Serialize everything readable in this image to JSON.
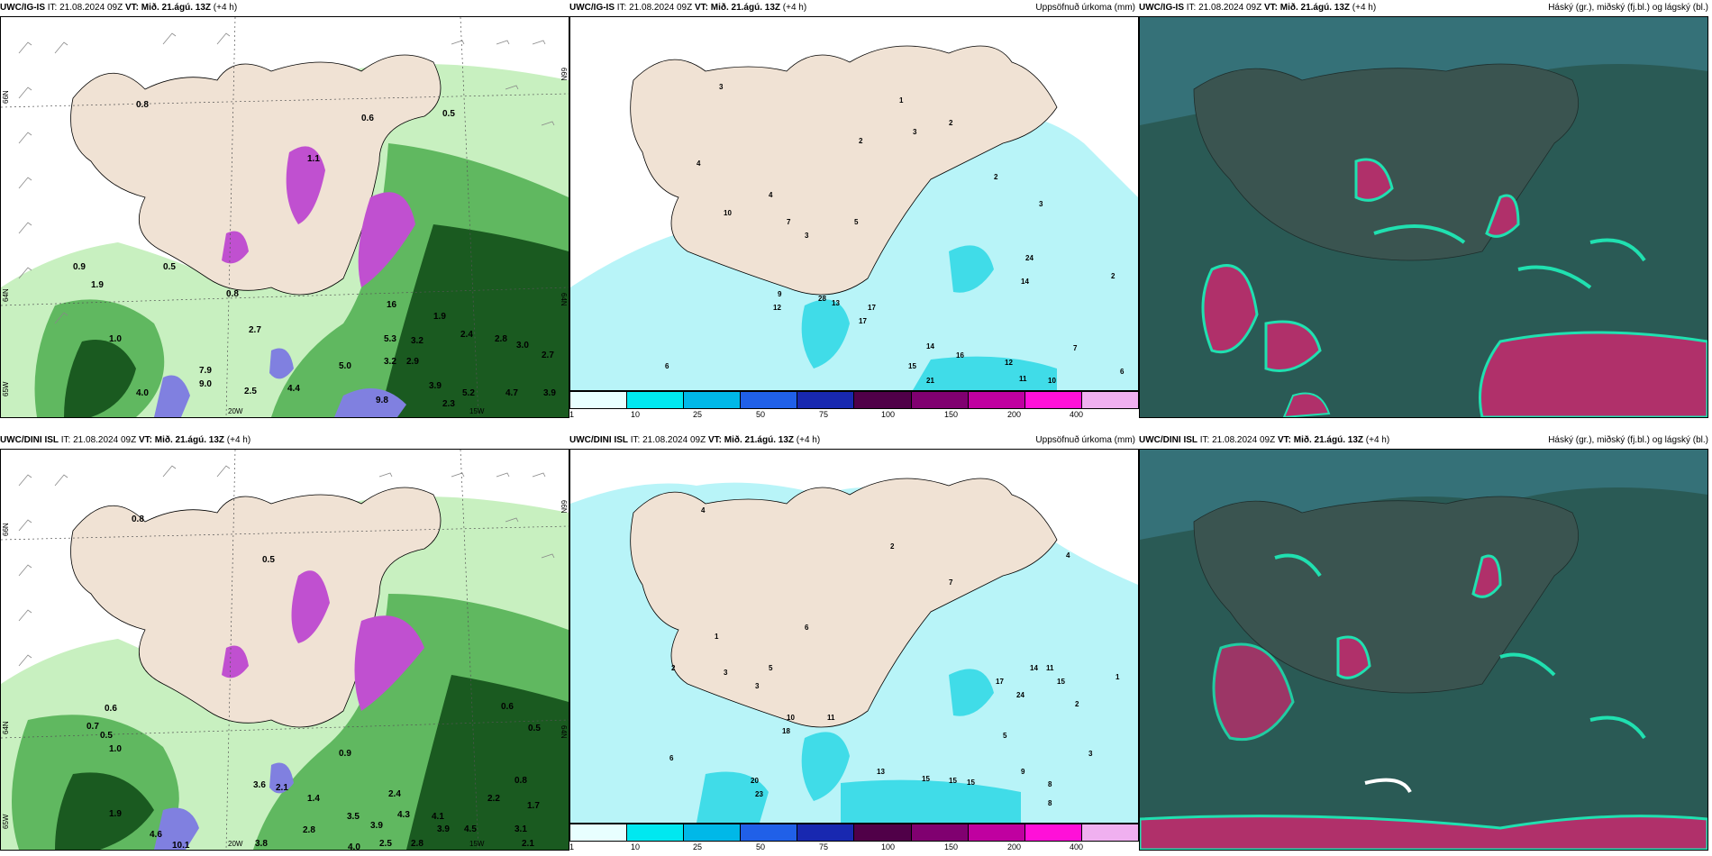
{
  "panels": [
    {
      "id": "top-left",
      "model": "UWC/IG-IS",
      "it_label": "IT:",
      "it_value": "21.08.2024 09Z",
      "vt_label": "VT:",
      "vt_value": "Mið. 21.ágú. 13Z",
      "lead": "(+4 h)",
      "title_right": "",
      "lat_labels": [
        "66N",
        "64N",
        "65W"
      ],
      "lon_labels": [
        "20W",
        "15W"
      ],
      "right_lat_labels": [
        "66N",
        "64N"
      ],
      "values": [
        "0.8",
        "0.5",
        "0.6",
        "1.1",
        "1.0",
        "0.9",
        "0.8",
        "0.5",
        "2.7",
        "1.9",
        "4.0",
        "7.9",
        "9.0",
        "2.5",
        "4.4",
        "5.0",
        "5.3",
        "3.2",
        "3.2",
        "2.9",
        "3.9",
        "1.9",
        "2.4",
        "2.8",
        "3.0",
        "2.7",
        "5.2",
        "4.7",
        "3.9",
        "9.8",
        "2.3",
        "16"
      ]
    },
    {
      "id": "top-mid",
      "model": "UWC/IG-IS",
      "it_label": "IT:",
      "it_value": "21.08.2024 09Z",
      "vt_label": "VT:",
      "vt_value": "Mið. 21.ágú. 13Z",
      "lead": "(+4 h)",
      "title_right": "Uppsöfnuð úrkoma (mm)",
      "values": [
        "3",
        "1",
        "2",
        "3",
        "2",
        "10",
        "7",
        "9",
        "12",
        "13",
        "28",
        "17",
        "17",
        "14",
        "16",
        "12",
        "15",
        "21",
        "11",
        "10",
        "7",
        "6",
        "24",
        "14",
        "2",
        "6",
        "4",
        "4",
        "5",
        "3",
        "2",
        "3"
      ]
    },
    {
      "id": "top-right",
      "model": "UWC/IG-IS",
      "it_label": "IT:",
      "it_value": "21.08.2024 09Z",
      "vt_label": "VT:",
      "vt_value": "Mið. 21.ágú. 13Z",
      "lead": "(+4 h)",
      "title_right": "Háský (gr.), miðský (fj.bl.) og lágský (bl.)"
    },
    {
      "id": "bot-left",
      "model": "UWC/DINI ISL",
      "it_label": "IT:",
      "it_value": "21.08.2024 09Z",
      "vt_label": "VT:",
      "vt_value": "Mið. 21.ágú. 13Z",
      "lead": "(+4 h)",
      "title_right": "",
      "lat_labels": [
        "66N",
        "64N",
        "65W"
      ],
      "lon_labels": [
        "20W",
        "15W"
      ],
      "right_lat_labels": [
        "66N",
        "64N"
      ],
      "values": [
        "0.8",
        "0.5",
        "0.6",
        "0.7",
        "1.0",
        "0.5",
        "1.9",
        "4.6",
        "10.1",
        "3.8",
        "2.8",
        "4.0",
        "2.5",
        "2.8",
        "3.5",
        "3.9",
        "4.3",
        "4.1",
        "3.9",
        "4.5",
        "3.1",
        "2.1",
        "1.7",
        "2.4",
        "2.2",
        "0.8",
        "0.6",
        "0.5",
        "0.9",
        "3.6",
        "2.1",
        "1.4"
      ]
    },
    {
      "id": "bot-mid",
      "model": "UWC/DINI ISL",
      "it_label": "IT:",
      "it_value": "21.08.2024 09Z",
      "vt_label": "VT:",
      "vt_value": "Mið. 21.ágú. 13Z",
      "lead": "(+4 h)",
      "title_right": "Uppsöfnuð úrkoma (mm)",
      "values": [
        "1",
        "4",
        "2",
        "3",
        "3",
        "5",
        "6",
        "10",
        "18",
        "11",
        "20",
        "23",
        "13",
        "15",
        "15",
        "15",
        "9",
        "8",
        "3",
        "2",
        "6",
        "5",
        "17",
        "24",
        "14",
        "11",
        "15",
        "1",
        "4",
        "7",
        "2",
        "8"
      ]
    },
    {
      "id": "bot-right",
      "model": "UWC/DINI ISL",
      "it_label": "IT:",
      "it_value": "21.08.2024 09Z",
      "vt_label": "VT:",
      "vt_value": "Mið. 21.ágú. 13Z",
      "lead": "(+4 h)",
      "title_right": "Háský (gr.), miðský (fj.bl.) og lágský (bl.)"
    }
  ],
  "colorbar": {
    "ticks": [
      "1",
      "10",
      "25",
      "50",
      "75",
      "100",
      "150",
      "200",
      "400"
    ],
    "colors": [
      "#e8ffff",
      "#00e8f0",
      "#00b8e8",
      "#2060e8",
      "#1828b0",
      "#500048",
      "#800070",
      "#c000a0",
      "#ff10d8",
      "#f0b0f0"
    ]
  },
  "colors": {
    "land": "#f0e2d4",
    "sea": "#ffffff",
    "precip_light": "#c8f0c0",
    "precip_mid": "#60b860",
    "precip_dark": "#1a5a20",
    "precip_purple": "#c050d0",
    "accum_sea": "#b8f4f8",
    "accum_cyan": "#40dce8",
    "cloud_base": "#2a5a55",
    "cloud_teal": "#20e0b0",
    "cloud_red": "#b0306a"
  }
}
